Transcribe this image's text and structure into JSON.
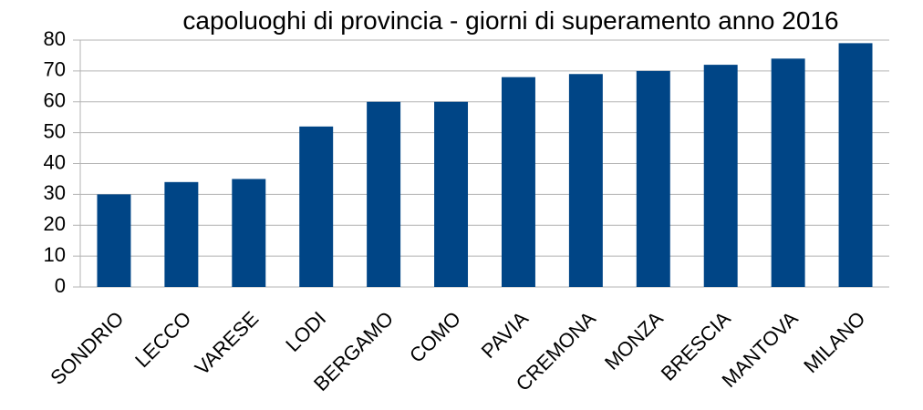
{
  "chart_data": {
    "type": "bar",
    "title": "capoluoghi di provincia - giorni di superamento anno 2016",
    "categories": [
      "SONDRIO",
      "LECCO",
      "VARESE",
      "LODI",
      "BERGAMO",
      "COMO",
      "PAVIA",
      "CREMONA",
      "MONZA",
      "BRESCIA",
      "MANTOVA",
      "MILANO"
    ],
    "values": [
      30,
      34,
      35,
      52,
      60,
      60,
      68,
      69,
      70,
      72,
      74,
      79
    ],
    "color": "#004586",
    "ylim": [
      0,
      80
    ],
    "yticks": [
      0,
      10,
      20,
      30,
      40,
      50,
      60,
      70,
      80
    ],
    "grid": true
  }
}
